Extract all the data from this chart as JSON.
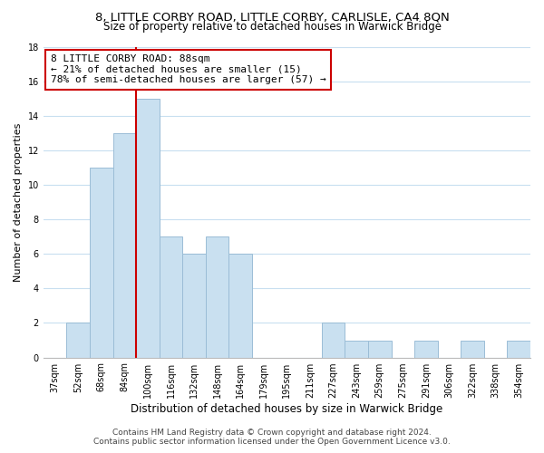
{
  "title": "8, LITTLE CORBY ROAD, LITTLE CORBY, CARLISLE, CA4 8QN",
  "subtitle": "Size of property relative to detached houses in Warwick Bridge",
  "xlabel": "Distribution of detached houses by size in Warwick Bridge",
  "ylabel": "Number of detached properties",
  "bar_labels": [
    "37sqm",
    "52sqm",
    "68sqm",
    "84sqm",
    "100sqm",
    "116sqm",
    "132sqm",
    "148sqm",
    "164sqm",
    "179sqm",
    "195sqm",
    "211sqm",
    "227sqm",
    "243sqm",
    "259sqm",
    "275sqm",
    "291sqm",
    "306sqm",
    "322sqm",
    "338sqm",
    "354sqm"
  ],
  "bar_values": [
    0,
    2,
    11,
    13,
    15,
    7,
    6,
    7,
    6,
    0,
    0,
    0,
    2,
    1,
    1,
    0,
    1,
    0,
    1,
    0,
    1
  ],
  "bar_color": "#c9e0f0",
  "bar_edge_color": "#9bbdd6",
  "grid_color": "#c8dff0",
  "vline_color": "#cc0000",
  "vline_x_index": 3.5,
  "annotation_title": "8 LITTLE CORBY ROAD: 88sqm",
  "annotation_line1": "← 21% of detached houses are smaller (15)",
  "annotation_line2": "78% of semi-detached houses are larger (57) →",
  "annotation_box_facecolor": "#ffffff",
  "annotation_box_edgecolor": "#cc0000",
  "ylim": [
    0,
    18
  ],
  "yticks": [
    0,
    2,
    4,
    6,
    8,
    10,
    12,
    14,
    16,
    18
  ],
  "footer1": "Contains HM Land Registry data © Crown copyright and database right 2024.",
  "footer2": "Contains public sector information licensed under the Open Government Licence v3.0.",
  "title_fontsize": 9.5,
  "subtitle_fontsize": 8.5,
  "xlabel_fontsize": 8.5,
  "ylabel_fontsize": 8,
  "tick_fontsize": 7,
  "annotation_fontsize": 8,
  "footer_fontsize": 6.5
}
